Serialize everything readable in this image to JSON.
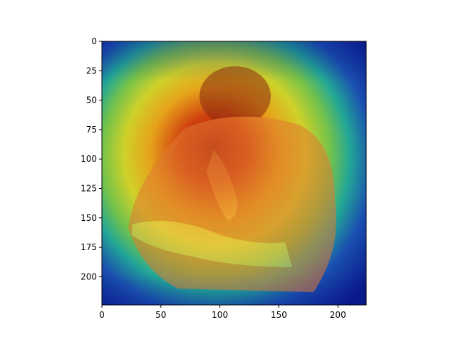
{
  "chart_data": {
    "type": "heatmap",
    "title": "",
    "xlabel": "",
    "ylabel": "",
    "image_size": [
      224,
      224
    ],
    "xlim": [
      0,
      224
    ],
    "ylim": [
      224,
      0
    ],
    "xticks": [
      0,
      50,
      100,
      150,
      200
    ],
    "yticks": [
      0,
      25,
      50,
      75,
      100,
      125,
      150,
      175,
      200
    ],
    "grid": false,
    "legend": "none",
    "colormap": "jet",
    "colors": {
      "low": "#0a1a8c",
      "mid": "#3fbf6a",
      "high": "#b31a0a",
      "figure_bg": "#ffffff",
      "axes_edge": "#000000"
    },
    "description_hotspot_center": [
      100,
      110
    ]
  }
}
